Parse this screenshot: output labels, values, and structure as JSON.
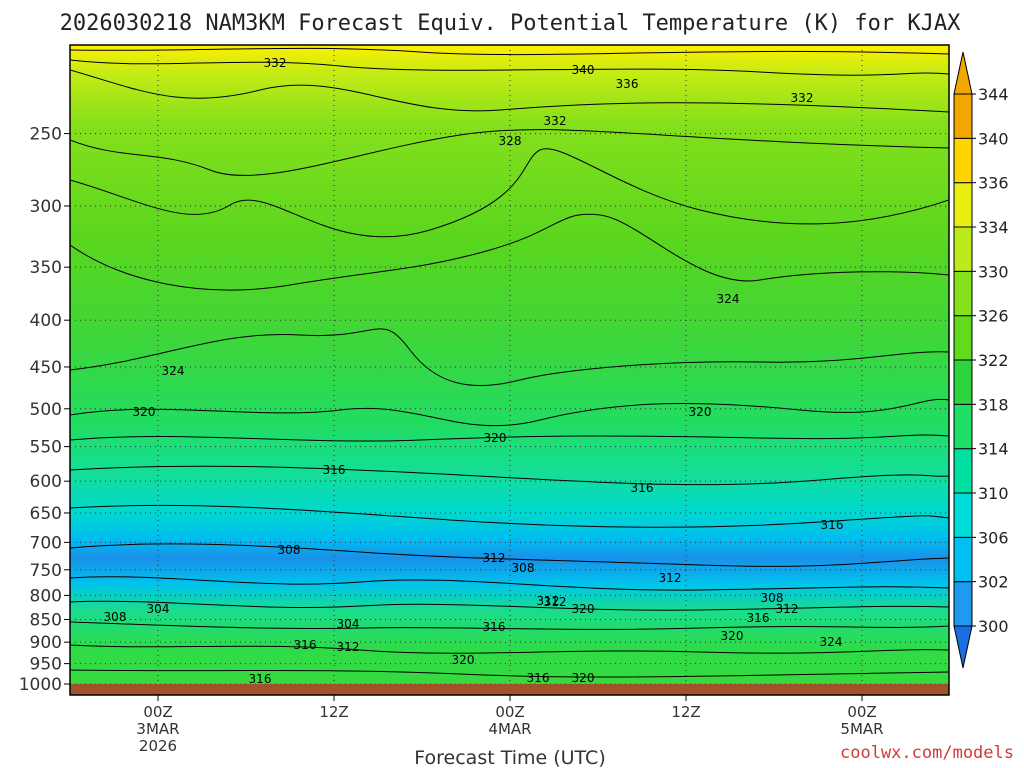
{
  "chart_data": {
    "type": "heatmap",
    "title": "2026030218 NAM3KM Forecast Equiv. Potential Temperature (K) for KJAX",
    "xlabel": "Forecast Time (UTC)",
    "ylabel": "",
    "credit": "coolwx.com/models",
    "y_axis": {
      "scale": "log-pressure",
      "inverted": true,
      "range": [
        1000,
        200
      ],
      "ticks": [
        250,
        300,
        350,
        400,
        450,
        500,
        550,
        600,
        650,
        700,
        750,
        800,
        850,
        900,
        950,
        1000
      ]
    },
    "x_axis": {
      "ticks": [
        {
          "label_lines": [
            "00Z",
            "3MAR",
            "2026"
          ]
        },
        {
          "label_lines": [
            "12Z"
          ]
        },
        {
          "label_lines": [
            "00Z",
            "4MAR"
          ]
        },
        {
          "label_lines": [
            "12Z"
          ]
        },
        {
          "label_lines": [
            "00Z",
            "5MAR"
          ]
        }
      ]
    },
    "grid": true,
    "colorbar": {
      "placement": "right",
      "unit": "K",
      "levels": [
        300,
        302,
        306,
        310,
        314,
        318,
        322,
        326,
        330,
        334,
        336,
        340,
        344
      ],
      "colors": [
        "#1a6fe0",
        "#1c9bf0",
        "#00c0f0",
        "#00dcd8",
        "#00e0a0",
        "#1ee066",
        "#2ed43e",
        "#60dc1c",
        "#86e01c",
        "#bcea1a",
        "#e8ee10",
        "#ffd400",
        "#f0a800"
      ]
    },
    "ground_color": "#a0522d",
    "contour_labels": [
      {
        "value": 340
      },
      {
        "value": 336
      },
      {
        "value": 332
      },
      {
        "value": 332
      },
      {
        "value": 332
      },
      {
        "value": 328
      },
      {
        "value": 324
      },
      {
        "value": 324
      },
      {
        "value": 320
      },
      {
        "value": 320
      },
      {
        "value": 320
      },
      {
        "value": 316
      },
      {
        "value": 316
      },
      {
        "value": 316
      },
      {
        "value": 312
      },
      {
        "value": 312
      },
      {
        "value": 312
      },
      {
        "value": 308
      },
      {
        "value": 308
      },
      {
        "value": 308
      },
      {
        "value": 308
      },
      {
        "value": 304
      },
      {
        "value": 304
      },
      {
        "value": 316
      },
      {
        "value": 312
      },
      {
        "value": 312
      },
      {
        "value": 320
      },
      {
        "value": 316
      },
      {
        "value": 320
      },
      {
        "value": 316
      },
      {
        "value": 324
      },
      {
        "value": 312
      },
      {
        "value": 320
      },
      {
        "value": 316
      },
      {
        "value": 316
      },
      {
        "value": 320
      }
    ]
  }
}
